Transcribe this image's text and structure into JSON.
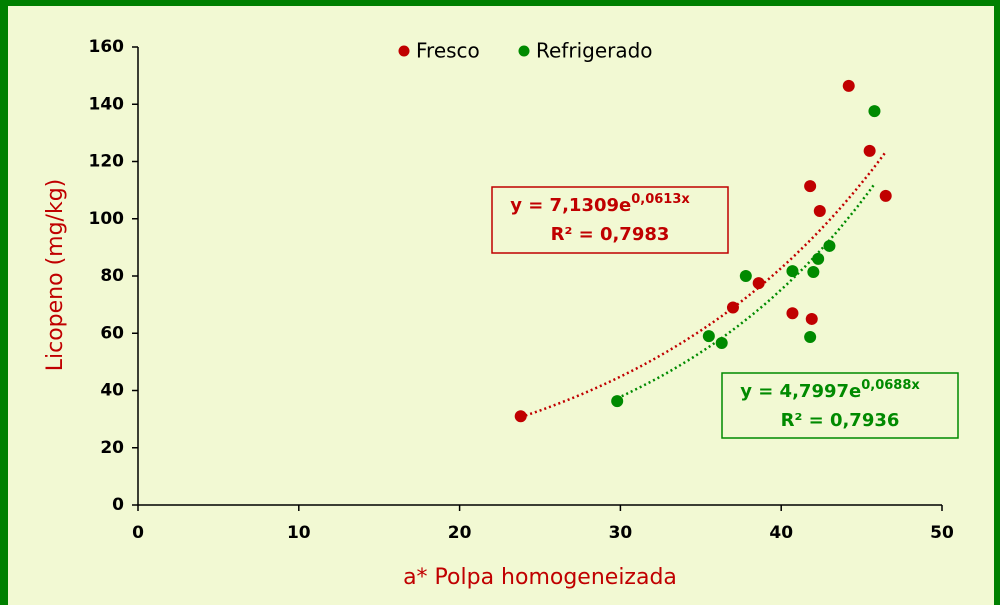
{
  "chart_data": {
    "type": "scatter",
    "xlabel": "a* Polpa homogeneizada",
    "ylabel": "Licopeno (mg/kg)",
    "xlim": [
      0,
      50
    ],
    "xticks": [
      0,
      10,
      20,
      30,
      40,
      50
    ],
    "ylim": [
      0,
      160
    ],
    "yticks": [
      0,
      20,
      40,
      60,
      80,
      100,
      120,
      140,
      160
    ],
    "grid": false,
    "legend": "top",
    "series": [
      {
        "name": "Fresco",
        "color": "#c00000",
        "x": [
          23.8,
          37.0,
          38.6,
          40.7,
          41.9,
          41.8,
          42.4,
          44.2,
          45.5,
          46.5
        ],
        "values": [
          31,
          69,
          77.5,
          67,
          65,
          111.4,
          102.7,
          146.4,
          123.7,
          108
        ],
        "trendline": {
          "a": 7.1309,
          "b": 0.0613,
          "equation": "y = 7,1309e",
          "exponent": "0,0613x",
          "r2_label": "R² = 0,7983"
        }
      },
      {
        "name": "Refrigerado",
        "color": "#008a00",
        "x": [
          29.8,
          35.5,
          36.3,
          37.8,
          40.7,
          41.8,
          42.0,
          42.3,
          43.0,
          45.8
        ],
        "values": [
          36.3,
          59,
          56.6,
          80,
          81.7,
          58.7,
          81.4,
          86,
          90.5,
          137.6
        ],
        "trendline": {
          "a": 4.7997,
          "b": 0.0688,
          "equation": "y = 4,7997e",
          "exponent": "0,0688x",
          "r2_label": "R² = 0,7936"
        }
      }
    ]
  }
}
